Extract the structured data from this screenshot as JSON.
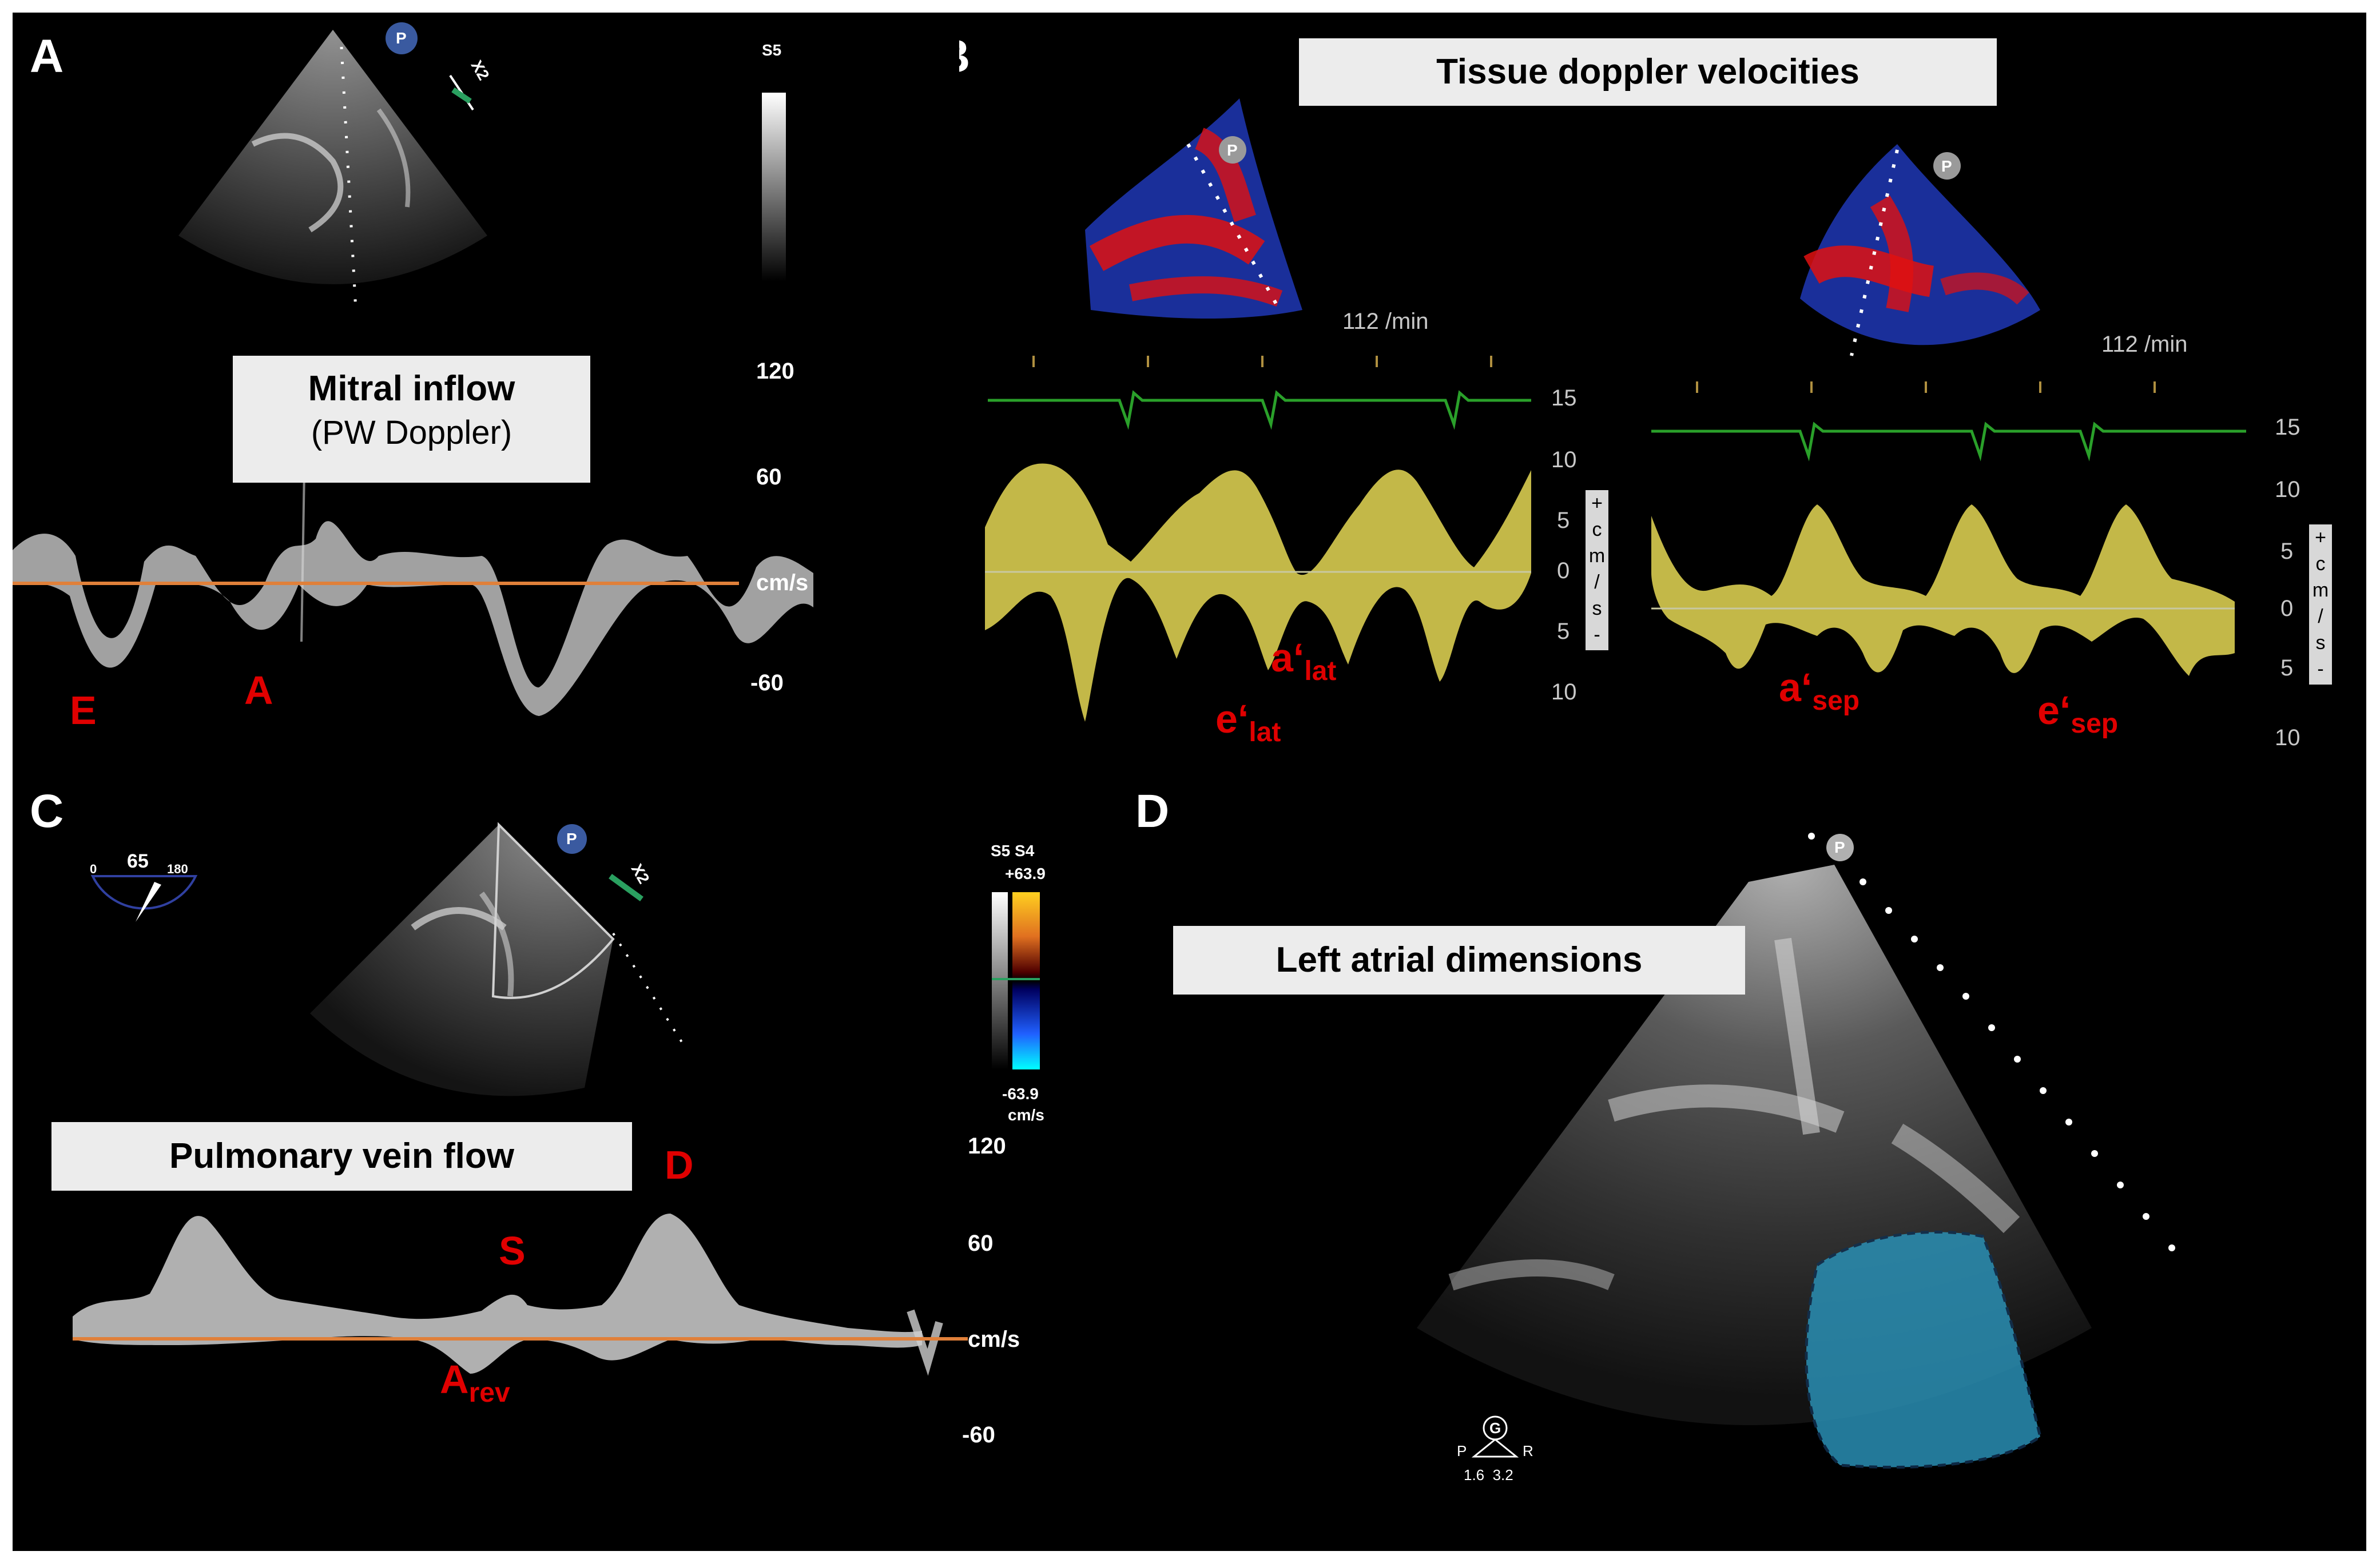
{
  "panels": {
    "A": {
      "label": "A",
      "probe_marker": "P",
      "zoom_label": "X2",
      "gain_label": "S5",
      "title_line1": "Mitral inflow",
      "title_line2": "(PW Doppler)",
      "scale": [
        "120",
        "60",
        "cm/s",
        "-60"
      ],
      "ann_E": "E",
      "ann_A": "A"
    },
    "B": {
      "label": "B",
      "title": "Tissue doppler velocities",
      "probe_marker_left": "P",
      "probe_marker_right": "P",
      "hr_left": "112 /min",
      "hr_right": "112 /min",
      "scale_left": [
        "15",
        "10",
        "5",
        "0",
        "5",
        "10"
      ],
      "scale_right": [
        "15",
        "10",
        "5",
        "0",
        "5",
        "10"
      ],
      "unit_chars": [
        "+",
        "c",
        "m",
        "/",
        "s",
        "-"
      ],
      "ann_a_lat_main": "a‘",
      "ann_a_lat_sub": "lat",
      "ann_e_lat_main": "e‘",
      "ann_e_lat_sub": "lat",
      "ann_a_sep_main": "a‘",
      "ann_a_sep_sub": "sep",
      "ann_e_sep_main": "e‘",
      "ann_e_sep_sub": "sep"
    },
    "C": {
      "label": "C",
      "probe_marker": "P",
      "zoom_label": "X2",
      "angle_value": "65",
      "angle_min": "0",
      "angle_max": "180",
      "color_header": "S5 S4",
      "color_max": "+63.9",
      "color_min": "-63.9",
      "color_unit": "cm/s",
      "title": "Pulmonary vein flow",
      "scale": [
        "120",
        "60",
        "cm/s",
        "-60"
      ],
      "ann_D": "D",
      "ann_S": "S",
      "ann_Arev_main": "A",
      "ann_Arev_sub": "rev"
    },
    "D": {
      "label": "D",
      "probe_marker": "P",
      "title": "Left atrial dimensions",
      "orient_G": "G",
      "orient_P": "P",
      "orient_R": "R",
      "orient_vals": "1.6  3.2"
    }
  },
  "colors": {
    "annotation": "#e00000",
    "baseline": "#e0803a",
    "tissue_doppler": "#d8cc50",
    "ecg": "#2aa02a",
    "la_overlay": "#2a8fb4"
  }
}
